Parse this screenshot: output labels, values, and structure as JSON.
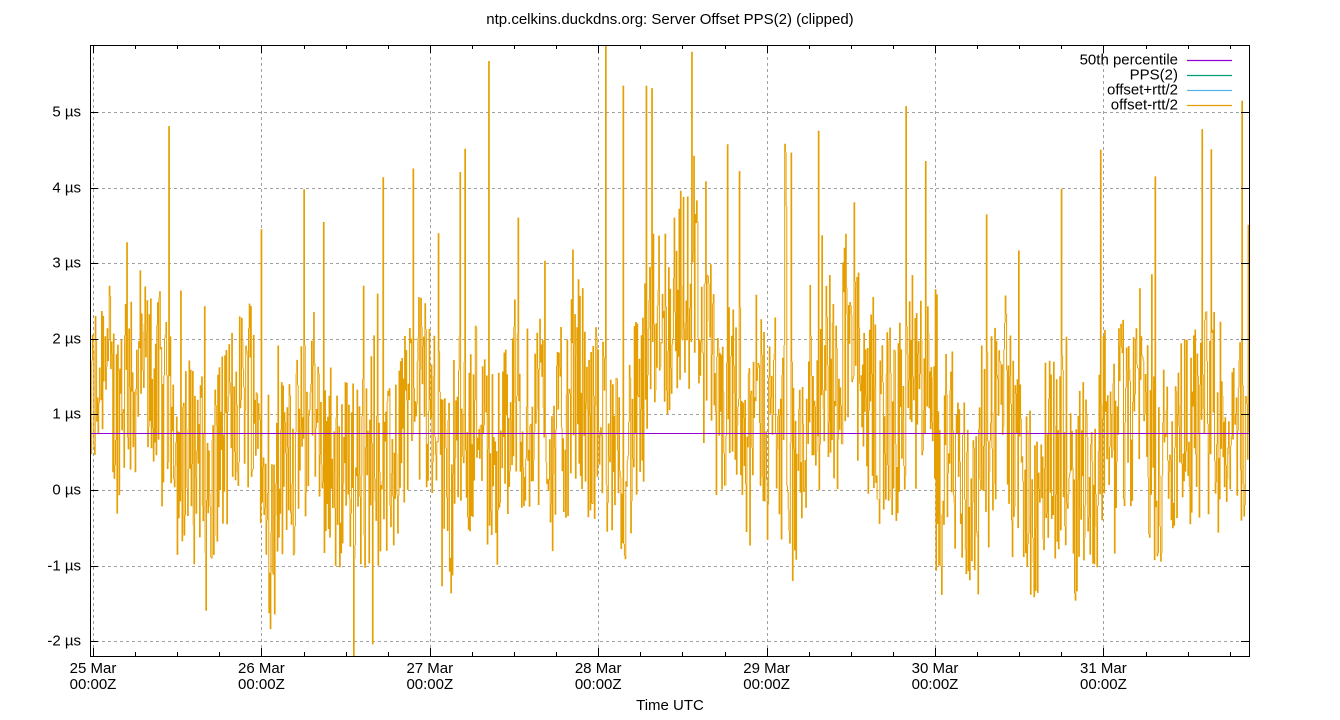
{
  "chart_data": {
    "type": "line",
    "title": "ntp.celkins.duckdns.org: Server Offset PPS(2) (clipped)",
    "xlabel": "Time UTC",
    "ylabel": "",
    "x_tick_labels": [
      {
        "line1": "25 Mar",
        "line2": "00:00Z"
      },
      {
        "line1": "26 Mar",
        "line2": "00:00Z"
      },
      {
        "line1": "27 Mar",
        "line2": "00:00Z"
      },
      {
        "line1": "28 Mar",
        "line2": "00:00Z"
      },
      {
        "line1": "29 Mar",
        "line2": "00:00Z"
      },
      {
        "line1": "30 Mar",
        "line2": "00:00Z"
      },
      {
        "line1": "31 Mar",
        "line2": "00:00Z"
      }
    ],
    "y_tick_labels": [
      "5 µs",
      "4 µs",
      "3 µs",
      "2 µs",
      "1 µs",
      "0 µs",
      "-1 µs",
      "-2 µs"
    ],
    "y_ticks": [
      5,
      4,
      3,
      2,
      1,
      0,
      -1,
      -2
    ],
    "ylim": [
      -2.2,
      5.9
    ],
    "xlim_days": [
      24.97,
      31.85
    ],
    "grid": true,
    "legend_position": "top-right",
    "series": [
      {
        "name": "50th percentile",
        "color": "#9400d3",
        "value": 0.75
      },
      {
        "name": "PPS(2)",
        "color": "#009e73",
        "values": []
      },
      {
        "name": "offset+rtt/2",
        "color": "#56b4e9",
        "values": []
      },
      {
        "name": "offset-rtt/2",
        "color": "#e69f00",
        "mean": 0.9,
        "spread": 1.6,
        "min": -2.2,
        "max": 5.9,
        "description": "dense noisy series oscillating roughly between -2 µs and 5.9 µs (clipped), centered near 0.75 µs"
      }
    ]
  }
}
